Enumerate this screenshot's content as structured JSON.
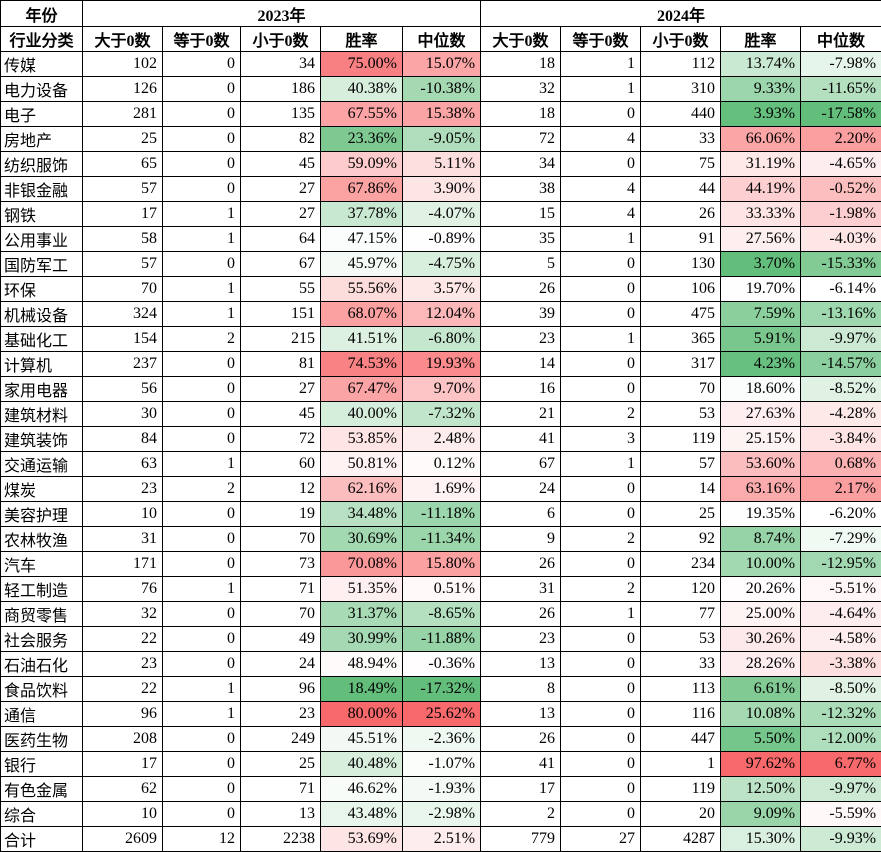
{
  "colors": {
    "heat_low_green": "#63BE7B",
    "heat_mid_white": "#FFFFFF",
    "heat_high_red": "#F8696B",
    "grid_border": "#000000",
    "text": "#000000",
    "background": "#FFFFFF"
  },
  "chart_data": {
    "type": "table",
    "row_header": {
      "top": "年份",
      "bottom": "行业分类"
    },
    "column_groups": [
      {
        "label": "2023年",
        "columns": [
          "大于0数",
          "等于0数",
          "小于0数",
          "胜率",
          "中位数"
        ]
      },
      {
        "label": "2024年",
        "columns": [
          "大于0数",
          "等于0数",
          "小于0数",
          "胜率",
          "中位数"
        ]
      }
    ],
    "heat_columns": [
      4,
      5,
      9,
      10
    ],
    "rows": [
      [
        "传媒",
        102,
        0,
        34,
        "75.00%",
        "15.07%",
        18,
        1,
        112,
        "13.74%",
        "-7.98%"
      ],
      [
        "电力设备",
        126,
        0,
        186,
        "40.38%",
        "-10.38%",
        32,
        1,
        310,
        "9.33%",
        "-11.65%"
      ],
      [
        "电子",
        281,
        0,
        135,
        "67.55%",
        "15.38%",
        18,
        0,
        440,
        "3.93%",
        "-17.58%"
      ],
      [
        "房地产",
        25,
        0,
        82,
        "23.36%",
        "-9.05%",
        72,
        4,
        33,
        "66.06%",
        "2.20%"
      ],
      [
        "纺织服饰",
        65,
        0,
        45,
        "59.09%",
        "5.11%",
        34,
        0,
        75,
        "31.19%",
        "-4.65%"
      ],
      [
        "非银金融",
        57,
        0,
        27,
        "67.86%",
        "3.90%",
        38,
        4,
        44,
        "44.19%",
        "-0.52%"
      ],
      [
        "钢铁",
        17,
        1,
        27,
        "37.78%",
        "-4.07%",
        15,
        4,
        26,
        "33.33%",
        "-1.98%"
      ],
      [
        "公用事业",
        58,
        1,
        64,
        "47.15%",
        "-0.89%",
        35,
        1,
        91,
        "27.56%",
        "-4.03%"
      ],
      [
        "国防军工",
        57,
        0,
        67,
        "45.97%",
        "-4.75%",
        5,
        0,
        130,
        "3.70%",
        "-15.33%"
      ],
      [
        "环保",
        70,
        1,
        55,
        "55.56%",
        "3.57%",
        26,
        0,
        106,
        "19.70%",
        "-6.14%"
      ],
      [
        "机械设备",
        324,
        1,
        151,
        "68.07%",
        "12.04%",
        39,
        0,
        475,
        "7.59%",
        "-13.16%"
      ],
      [
        "基础化工",
        154,
        2,
        215,
        "41.51%",
        "-6.80%",
        23,
        1,
        365,
        "5.91%",
        "-9.97%"
      ],
      [
        "计算机",
        237,
        0,
        81,
        "74.53%",
        "19.93%",
        14,
        0,
        317,
        "4.23%",
        "-14.57%"
      ],
      [
        "家用电器",
        56,
        0,
        27,
        "67.47%",
        "9.70%",
        16,
        0,
        70,
        "18.60%",
        "-8.52%"
      ],
      [
        "建筑材料",
        30,
        0,
        45,
        "40.00%",
        "-7.32%",
        21,
        2,
        53,
        "27.63%",
        "-4.28%"
      ],
      [
        "建筑装饰",
        84,
        0,
        72,
        "53.85%",
        "2.48%",
        41,
        3,
        119,
        "25.15%",
        "-3.84%"
      ],
      [
        "交通运输",
        63,
        1,
        60,
        "50.81%",
        "0.12%",
        67,
        1,
        57,
        "53.60%",
        "0.68%"
      ],
      [
        "煤炭",
        23,
        2,
        12,
        "62.16%",
        "1.69%",
        24,
        0,
        14,
        "63.16%",
        "2.17%"
      ],
      [
        "美容护理",
        10,
        0,
        19,
        "34.48%",
        "-11.18%",
        6,
        0,
        25,
        "19.35%",
        "-6.20%"
      ],
      [
        "农林牧渔",
        31,
        0,
        70,
        "30.69%",
        "-11.34%",
        9,
        2,
        92,
        "8.74%",
        "-7.29%"
      ],
      [
        "汽车",
        171,
        0,
        73,
        "70.08%",
        "15.80%",
        26,
        0,
        234,
        "10.00%",
        "-12.95%"
      ],
      [
        "轻工制造",
        76,
        1,
        71,
        "51.35%",
        "0.51%",
        31,
        2,
        120,
        "20.26%",
        "-5.51%"
      ],
      [
        "商贸零售",
        32,
        0,
        70,
        "31.37%",
        "-8.65%",
        26,
        1,
        77,
        "25.00%",
        "-4.64%"
      ],
      [
        "社会服务",
        22,
        0,
        49,
        "30.99%",
        "-11.88%",
        23,
        0,
        53,
        "30.26%",
        "-4.58%"
      ],
      [
        "石油石化",
        23,
        0,
        24,
        "48.94%",
        "-0.36%",
        13,
        0,
        33,
        "28.26%",
        "-3.38%"
      ],
      [
        "食品饮料",
        22,
        1,
        96,
        "18.49%",
        "-17.32%",
        8,
        0,
        113,
        "6.61%",
        "-8.50%"
      ],
      [
        "通信",
        96,
        1,
        23,
        "80.00%",
        "25.62%",
        13,
        0,
        116,
        "10.08%",
        "-12.32%"
      ],
      [
        "医药生物",
        208,
        0,
        249,
        "45.51%",
        "-2.36%",
        26,
        0,
        447,
        "5.50%",
        "-12.00%"
      ],
      [
        "银行",
        17,
        0,
        25,
        "40.48%",
        "-1.07%",
        41,
        0,
        1,
        "97.62%",
        "6.77%"
      ],
      [
        "有色金属",
        62,
        0,
        71,
        "46.62%",
        "-1.93%",
        17,
        0,
        119,
        "12.50%",
        "-9.97%"
      ],
      [
        "综合",
        10,
        0,
        13,
        "43.48%",
        "-2.98%",
        2,
        0,
        20,
        "9.09%",
        "-5.59%"
      ],
      [
        "合计",
        2609,
        12,
        2238,
        "53.69%",
        "2.51%",
        779,
        27,
        4287,
        "15.30%",
        "-9.93%"
      ]
    ]
  }
}
